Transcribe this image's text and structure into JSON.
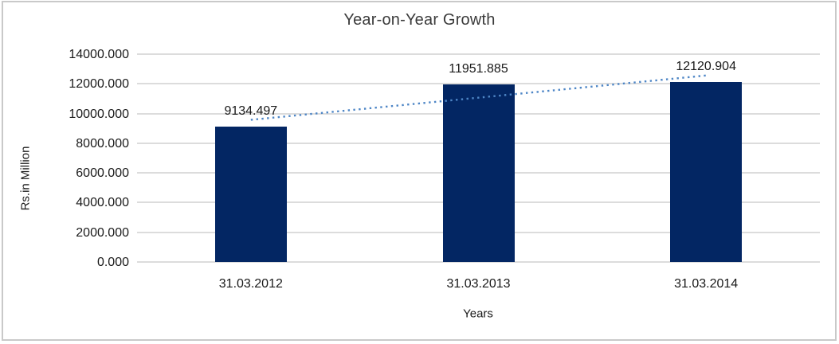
{
  "window": {
    "background": "#ffffff",
    "frame_border_color": "#c9c9c9"
  },
  "chart_data": {
    "type": "bar",
    "title": "Year-on-Year Growth",
    "xlabel": "Years",
    "ylabel": "Rs.in Million",
    "categories": [
      "31.03.2012",
      "31.03.2013",
      "31.03.2014"
    ],
    "values": [
      9134.497,
      11951.885,
      12120.904
    ],
    "data_labels": [
      "9134.497",
      "11951.885",
      "12120.904"
    ],
    "ylim": [
      0,
      14000
    ],
    "y_tick_step": 2000,
    "y_tick_labels": [
      "0.000",
      "2000.000",
      "4000.000",
      "6000.000",
      "8000.000",
      "10000.000",
      "12000.000",
      "14000.000"
    ],
    "grid": true,
    "legend": "none",
    "trendline": {
      "type": "linear",
      "style": "dotted",
      "color": "#4e86c6"
    },
    "colors": {
      "bar": "#032663",
      "gridline": "#dcdcdc",
      "text": "#191919",
      "title": "#3b3b3b"
    }
  }
}
